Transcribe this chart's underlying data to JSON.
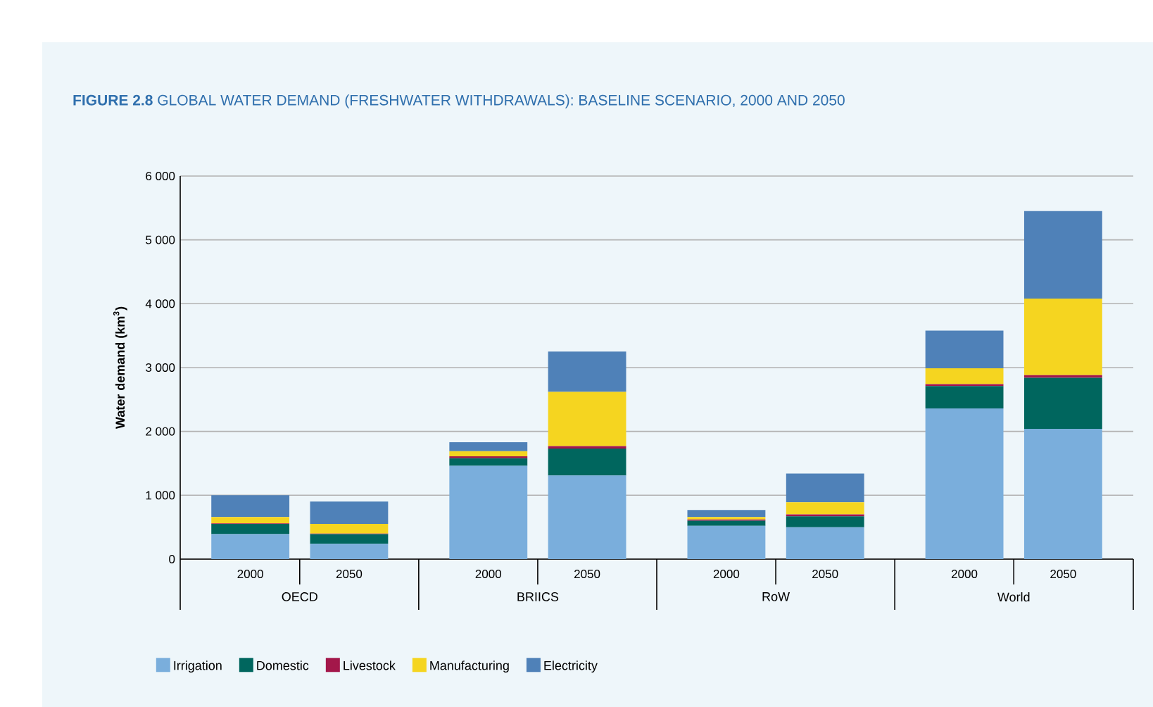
{
  "chart_data": {
    "type": "bar",
    "stacked": true,
    "title": "**FIGURE 2.8** GLOBAL WATER DEMAND (FRESHWATER WITHDRAWALS): BASELINE SCENARIO, 2000 AND 2050",
    "ylabel": "Water demand (km$^{3}$)",
    "categories": [
      "2000",
      "2050",
      "2000",
      "2050",
      "2000",
      "2050",
      "2000",
      "2050"
    ],
    "annotations": [
      "OECD",
      "BRIICS",
      "RoW",
      "World"
    ],
    "series": [
      {
        "name": "Irrigation",
        "color": "#7aaedc",
        "values": [
          390,
          240,
          1460,
          1310,
          520,
          500,
          2360,
          2040
        ]
      },
      {
        "name": "Domestic",
        "color": "#00665e",
        "values": [
          160,
          150,
          120,
          420,
          80,
          170,
          350,
          800
        ]
      },
      {
        "name": "Livestock",
        "color": "#a3174a",
        "values": [
          10,
          10,
          30,
          40,
          20,
          30,
          30,
          40
        ]
      },
      {
        "name": "Manufacturing",
        "color": "#f5d520",
        "values": [
          100,
          150,
          80,
          850,
          40,
          190,
          250,
          1200
        ]
      },
      {
        "name": "Electricity",
        "color": "#4f81b8",
        "values": [
          340,
          350,
          140,
          630,
          110,
          450,
          590,
          1370
        ]
      }
    ],
    "ylim": [
      0,
      6000
    ],
    "yticks": [
      0,
      {
        "value": 1000,
        "label": "1 000"
      },
      {
        "value": 2000,
        "label": "2 000"
      },
      {
        "value": 3000,
        "label": "3 000"
      },
      {
        "value": 4000,
        "label": "4 000"
      },
      {
        "value": 5000,
        "label": "5 000"
      },
      {
        "value": 6000,
        "label": "6 000"
      }
    ],
    "grid": "y",
    "legend": "bottom"
  }
}
